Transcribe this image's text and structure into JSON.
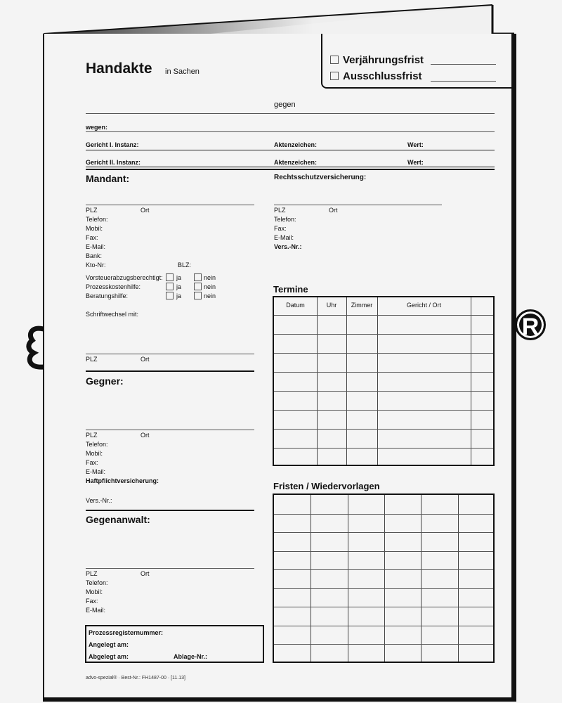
{
  "header": {
    "title": "Handakte",
    "subtitle": "in Sachen"
  },
  "tab": {
    "option1": "Verjährungsfrist",
    "option2": "Ausschlussfrist"
  },
  "case": {
    "against": "gegen",
    "regarding": "wegen:",
    "court1": "Gericht I. Instanz:",
    "court2": "Gericht II. Instanz:",
    "file_no": "Aktenzeichen:",
    "value": "Wert:"
  },
  "client": {
    "heading": "Mandant:",
    "plz": "PLZ",
    "ort": "Ort",
    "phone": "Telefon:",
    "mobile": "Mobil:",
    "fax": "Fax:",
    "email": "E-Mail:",
    "bank": "Bank:",
    "account": "Kto-Nr:",
    "blz": "BLZ:",
    "q1": "Vorsteuerabzugsberechtigt:",
    "q2": "Prozesskostenhilfe:",
    "q3": "Beratungshilfe:",
    "yes": "ja",
    "no": "nein",
    "correspondence": "Schriftwechsel mit:"
  },
  "insurance": {
    "heading": "Rechtsschutzversicherung:",
    "plz": "PLZ",
    "ort": "Ort",
    "phone": "Telefon:",
    "fax": "Fax:",
    "email": "E-Mail:",
    "policy": "Vers.-Nr.:"
  },
  "opponent": {
    "heading": "Gegner:",
    "plz": "PLZ",
    "ort": "Ort",
    "phone": "Telefon:",
    "mobile": "Mobil:",
    "fax": "Fax:",
    "email": "E-Mail:",
    "liability": "Haftpflichtversicherung:",
    "policy": "Vers.-Nr.:"
  },
  "opposing_counsel": {
    "heading": "Gegenanwalt:",
    "plz": "PLZ",
    "ort": "Ort",
    "phone": "Telefon:",
    "mobile": "Mobil:",
    "fax": "Fax:",
    "email": "E-Mail:"
  },
  "registry": {
    "number": "Prozessregisternummer:",
    "created": "Angelegt am:",
    "archived": "Abgelegt am:",
    "archive_no": "Ablage-Nr.:"
  },
  "appointments": {
    "heading": "Termine",
    "columns": [
      "Datum",
      "Uhr",
      "Zimmer",
      "Gericht / Ort",
      ""
    ]
  },
  "deadlines": {
    "heading": "Fristen / Wiedervorlagen"
  },
  "footer": {
    "text": "advo-spezial® · Best-Nr.: FH1487-00 · [11.13]"
  },
  "icons": {
    "registered": "registered-mark-icon",
    "binder": "binder-ring-icon"
  }
}
